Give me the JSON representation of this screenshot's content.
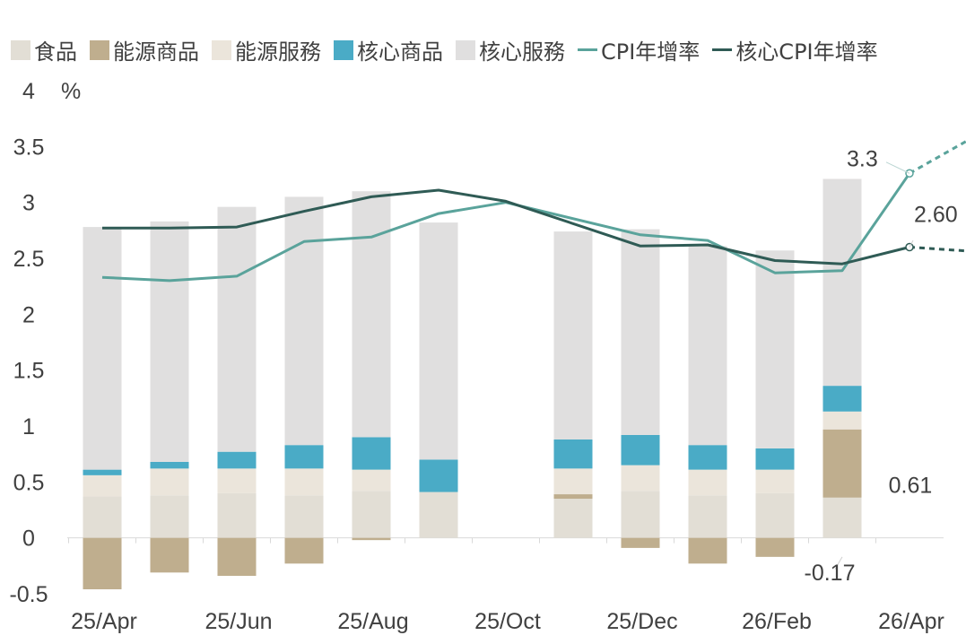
{
  "chart_data": {
    "type": "bar",
    "title": "",
    "xlabel": "",
    "ylabel": "%",
    "ylim": [
      -0.5,
      4
    ],
    "yticks": [
      -0.5,
      0,
      0.5,
      1,
      1.5,
      2,
      2.5,
      3,
      3.5,
      4
    ],
    "ytick_labels": [
      "-0.5",
      "0",
      "0.5",
      "1",
      "1.5",
      "2",
      "2.5",
      "3",
      "3.5",
      "4"
    ],
    "unit_label": "%",
    "xtick_labels": [
      "25/Apr",
      "25/Jun",
      "25/Aug",
      "25/Oct",
      "25/Dec",
      "26/Feb",
      "26/Apr"
    ],
    "categories": [
      "25/Apr",
      "25/May",
      "25/Jun",
      "25/Jul",
      "25/Aug",
      "25/Sep",
      "25/Oct",
      "25/Nov",
      "25/Dec",
      "26/Jan",
      "26/Feb",
      "26/Mar",
      "26/Apr"
    ],
    "bar_series": [
      {
        "name": "食品",
        "color": "#e2ded5",
        "values": [
          0.37,
          0.38,
          0.4,
          0.38,
          0.42,
          0.41,
          null,
          0.35,
          0.42,
          0.38,
          0.4,
          0.36,
          null
        ]
      },
      {
        "name": "能源商品",
        "color": "#bfae8e",
        "values": [
          -0.46,
          -0.31,
          -0.34,
          -0.23,
          -0.02,
          0,
          null,
          0.04,
          -0.09,
          -0.23,
          -0.17,
          0.61,
          null
        ]
      },
      {
        "name": "能源服務",
        "color": "#ebe5db",
        "values": [
          0.19,
          0.24,
          0.22,
          0.24,
          0.19,
          0,
          null,
          0.23,
          0.23,
          0.23,
          0.21,
          0.16,
          null
        ]
      },
      {
        "name": "核心商品",
        "color": "#4aabc6",
        "values": [
          0.05,
          0.06,
          0.15,
          0.21,
          0.29,
          0.29,
          null,
          0.26,
          0.27,
          0.22,
          0.19,
          0.23,
          null
        ]
      },
      {
        "name": "核心服務",
        "color": "#e0dfdf",
        "values": [
          2.17,
          2.15,
          2.19,
          2.22,
          2.2,
          2.12,
          null,
          1.86,
          1.84,
          1.78,
          1.77,
          1.85,
          null
        ]
      }
    ],
    "line_series": [
      {
        "name": "CPI年增率",
        "color": "#5aa39b",
        "values": [
          2.33,
          2.3,
          2.34,
          2.65,
          2.69,
          2.9,
          3.0,
          null,
          2.71,
          2.66,
          2.37,
          2.39,
          3.26
        ],
        "forecast_value": 3.6,
        "dashed_last": true
      },
      {
        "name": "核心CPI年增率",
        "color": "#2f5b55",
        "values": [
          2.77,
          2.77,
          2.78,
          2.92,
          3.05,
          3.11,
          3.01,
          null,
          2.61,
          2.62,
          2.48,
          2.45,
          2.6
        ],
        "forecast_value": 2.56,
        "dashed_last": true
      }
    ],
    "data_labels": {
      "cpi_last": "3.3",
      "cpi_forecast": "3.6",
      "core_last": "2.60",
      "core_forecast": "2.56",
      "energy_goods_mar": "0.61",
      "energy_goods_feb": "-0.17"
    },
    "legend": [
      {
        "label": "食品",
        "color": "#e2ded5",
        "kind": "box"
      },
      {
        "label": "能源商品",
        "color": "#bfae8e",
        "kind": "box"
      },
      {
        "label": "能源服務",
        "color": "#ebe5db",
        "kind": "box"
      },
      {
        "label": "核心商品",
        "color": "#4aabc6",
        "kind": "box"
      },
      {
        "label": "核心服務",
        "color": "#e0dfdf",
        "kind": "box"
      },
      {
        "label": "CPI年增率",
        "color": "#5aa39b",
        "kind": "line"
      },
      {
        "label": "核心CPI年增率",
        "color": "#2f5b55",
        "kind": "line"
      }
    ]
  }
}
